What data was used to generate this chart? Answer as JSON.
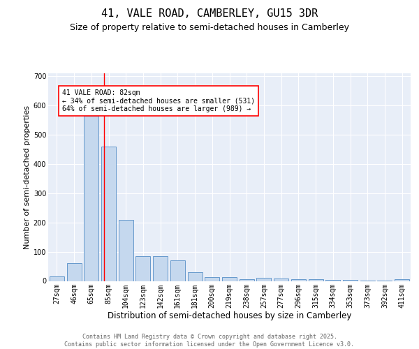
{
  "title_line1": "41, VALE ROAD, CAMBERLEY, GU15 3DR",
  "title_line2": "Size of property relative to semi-detached houses in Camberley",
  "xlabel": "Distribution of semi-detached houses by size in Camberley",
  "ylabel": "Number of semi-detached properties",
  "categories": [
    "27sqm",
    "46sqm",
    "65sqm",
    "85sqm",
    "104sqm",
    "123sqm",
    "142sqm",
    "161sqm",
    "181sqm",
    "200sqm",
    "219sqm",
    "238sqm",
    "257sqm",
    "277sqm",
    "296sqm",
    "315sqm",
    "334sqm",
    "353sqm",
    "373sqm",
    "392sqm",
    "411sqm"
  ],
  "values": [
    15,
    60,
    565,
    460,
    208,
    85,
    85,
    70,
    30,
    14,
    14,
    7,
    10,
    8,
    5,
    5,
    4,
    3,
    2,
    1,
    5
  ],
  "bar_color": "#c5d8ee",
  "bar_edge_color": "#6699cc",
  "vline_x": 2.75,
  "vline_color": "red",
  "annotation_text": "41 VALE ROAD: 82sqm\n← 34% of semi-detached houses are smaller (531)\n64% of semi-detached houses are larger (989) →",
  "ylim": [
    0,
    710
  ],
  "yticks": [
    0,
    100,
    200,
    300,
    400,
    500,
    600,
    700
  ],
  "background_color": "#e8eef8",
  "grid_color": "#d0d8e8",
  "footer_text": "Contains HM Land Registry data © Crown copyright and database right 2025.\nContains public sector information licensed under the Open Government Licence v3.0.",
  "title_fontsize": 11,
  "subtitle_fontsize": 9,
  "ylabel_fontsize": 8,
  "xlabel_fontsize": 8.5,
  "tick_fontsize": 7,
  "annot_fontsize": 7,
  "footer_fontsize": 6
}
